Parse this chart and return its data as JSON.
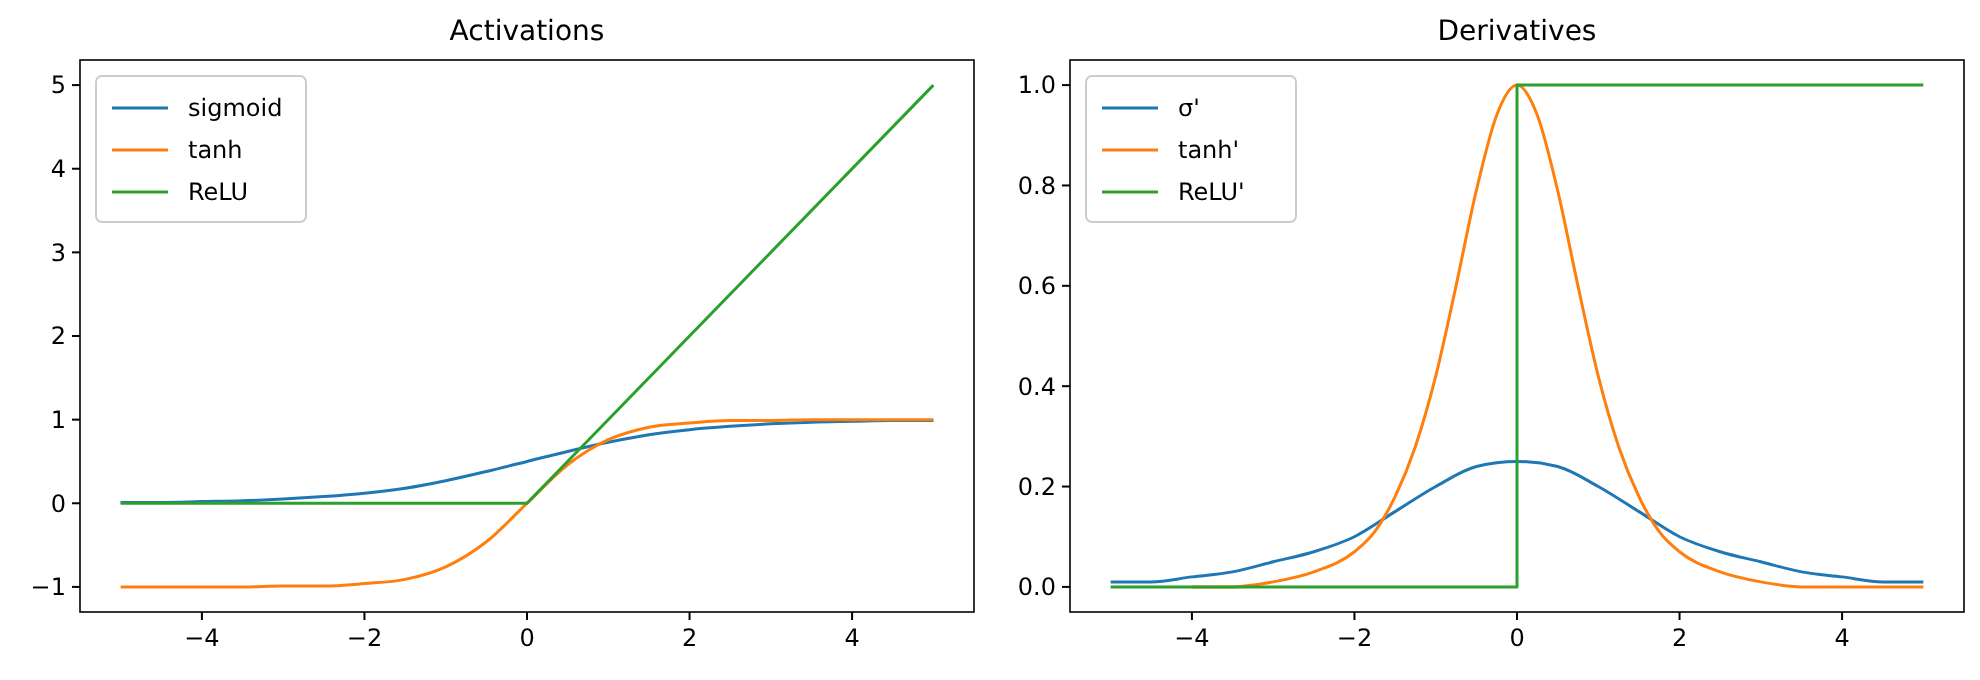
{
  "chart_data": [
    {
      "type": "line",
      "title": "Activations",
      "x": [
        -5,
        -4.5,
        -4,
        -3.5,
        -3,
        -2.5,
        -2,
        -1.5,
        -1,
        -0.5,
        0,
        0.5,
        1,
        1.5,
        2,
        2.5,
        3,
        3.5,
        4,
        4.5,
        5
      ],
      "xlim": [
        -5.5,
        5.5
      ],
      "xticks": [
        -4,
        -2,
        0,
        2,
        4
      ],
      "ylim": [
        -1.3,
        5.3
      ],
      "yticks": [
        -1,
        0,
        1,
        2,
        3,
        4,
        5
      ],
      "grid": false,
      "legend": "top left",
      "marker": "none",
      "line_style": "solid",
      "series": [
        {
          "name": "sigmoid",
          "color": "#1f77b4",
          "values": [
            0.01,
            0.01,
            0.02,
            0.03,
            0.05,
            0.08,
            0.12,
            0.18,
            0.27,
            0.38,
            0.5,
            0.62,
            0.73,
            0.82,
            0.88,
            0.92,
            0.95,
            0.97,
            0.98,
            0.99,
            0.99
          ]
        },
        {
          "name": "tanh",
          "color": "#ff7f0e",
          "values": [
            -1,
            -1,
            -1,
            -1,
            -0.99,
            -0.99,
            -0.96,
            -0.91,
            -0.76,
            -0.46,
            0,
            0.46,
            0.76,
            0.91,
            0.96,
            0.99,
            0.99,
            1,
            1,
            1,
            1
          ]
        },
        {
          "name": "ReLU",
          "color": "#2ca02c",
          "x": [
            -5,
            0,
            5
          ],
          "values": [
            0,
            0,
            5
          ]
        }
      ]
    },
    {
      "type": "line",
      "title": "Derivatives",
      "x": [
        -5,
        -4.5,
        -4,
        -3.5,
        -3,
        -2.5,
        -2,
        -1.5,
        -1,
        -0.5,
        0,
        0.5,
        1,
        1.5,
        2,
        2.5,
        3,
        3.5,
        4,
        4.5,
        5
      ],
      "xlim": [
        -5.5,
        5.5
      ],
      "xticks": [
        -4,
        -2,
        0,
        2,
        4
      ],
      "ylim": [
        -0.05,
        1.05
      ],
      "yticks": [
        {
          "value": 0,
          "label": "0.0"
        },
        0.2,
        0.4,
        0.6,
        0.8,
        {
          "value": 1,
          "label": "1.0"
        }
      ],
      "grid": false,
      "legend": "top left",
      "marker": "none",
      "line_style": "solid",
      "series": [
        {
          "name": "σ'",
          "color": "#1f77b4",
          "values": [
            0.01,
            0.01,
            0.02,
            0.03,
            0.05,
            0.07,
            0.1,
            0.15,
            0.2,
            0.24,
            0.25,
            0.24,
            0.2,
            0.15,
            0.1,
            0.07,
            0.05,
            0.03,
            0.02,
            0.01,
            0.01
          ]
        },
        {
          "name": "tanh'",
          "color": "#ff7f0e",
          "x": [
            -4,
            -3.5,
            -3,
            -2.5,
            -2,
            -1.75,
            -1.5,
            -1.25,
            -1,
            -0.75,
            -0.5,
            -0.25,
            0,
            0.25,
            0.5,
            0.75,
            1,
            1.25,
            1.5,
            1.75,
            2,
            2.5,
            3,
            3.5,
            4,
            4.5,
            5
          ],
          "values": [
            0,
            0,
            0.01,
            0.03,
            0.07,
            0.11,
            0.18,
            0.28,
            0.42,
            0.6,
            0.79,
            0.94,
            1,
            0.94,
            0.79,
            0.6,
            0.42,
            0.28,
            0.18,
            0.11,
            0.07,
            0.03,
            0.01,
            0,
            0,
            0,
            0
          ]
        },
        {
          "name": "ReLU'",
          "color": "#2ca02c",
          "x": [
            -5,
            0,
            0,
            5
          ],
          "values": [
            0,
            0,
            1,
            1
          ]
        }
      ]
    }
  ]
}
